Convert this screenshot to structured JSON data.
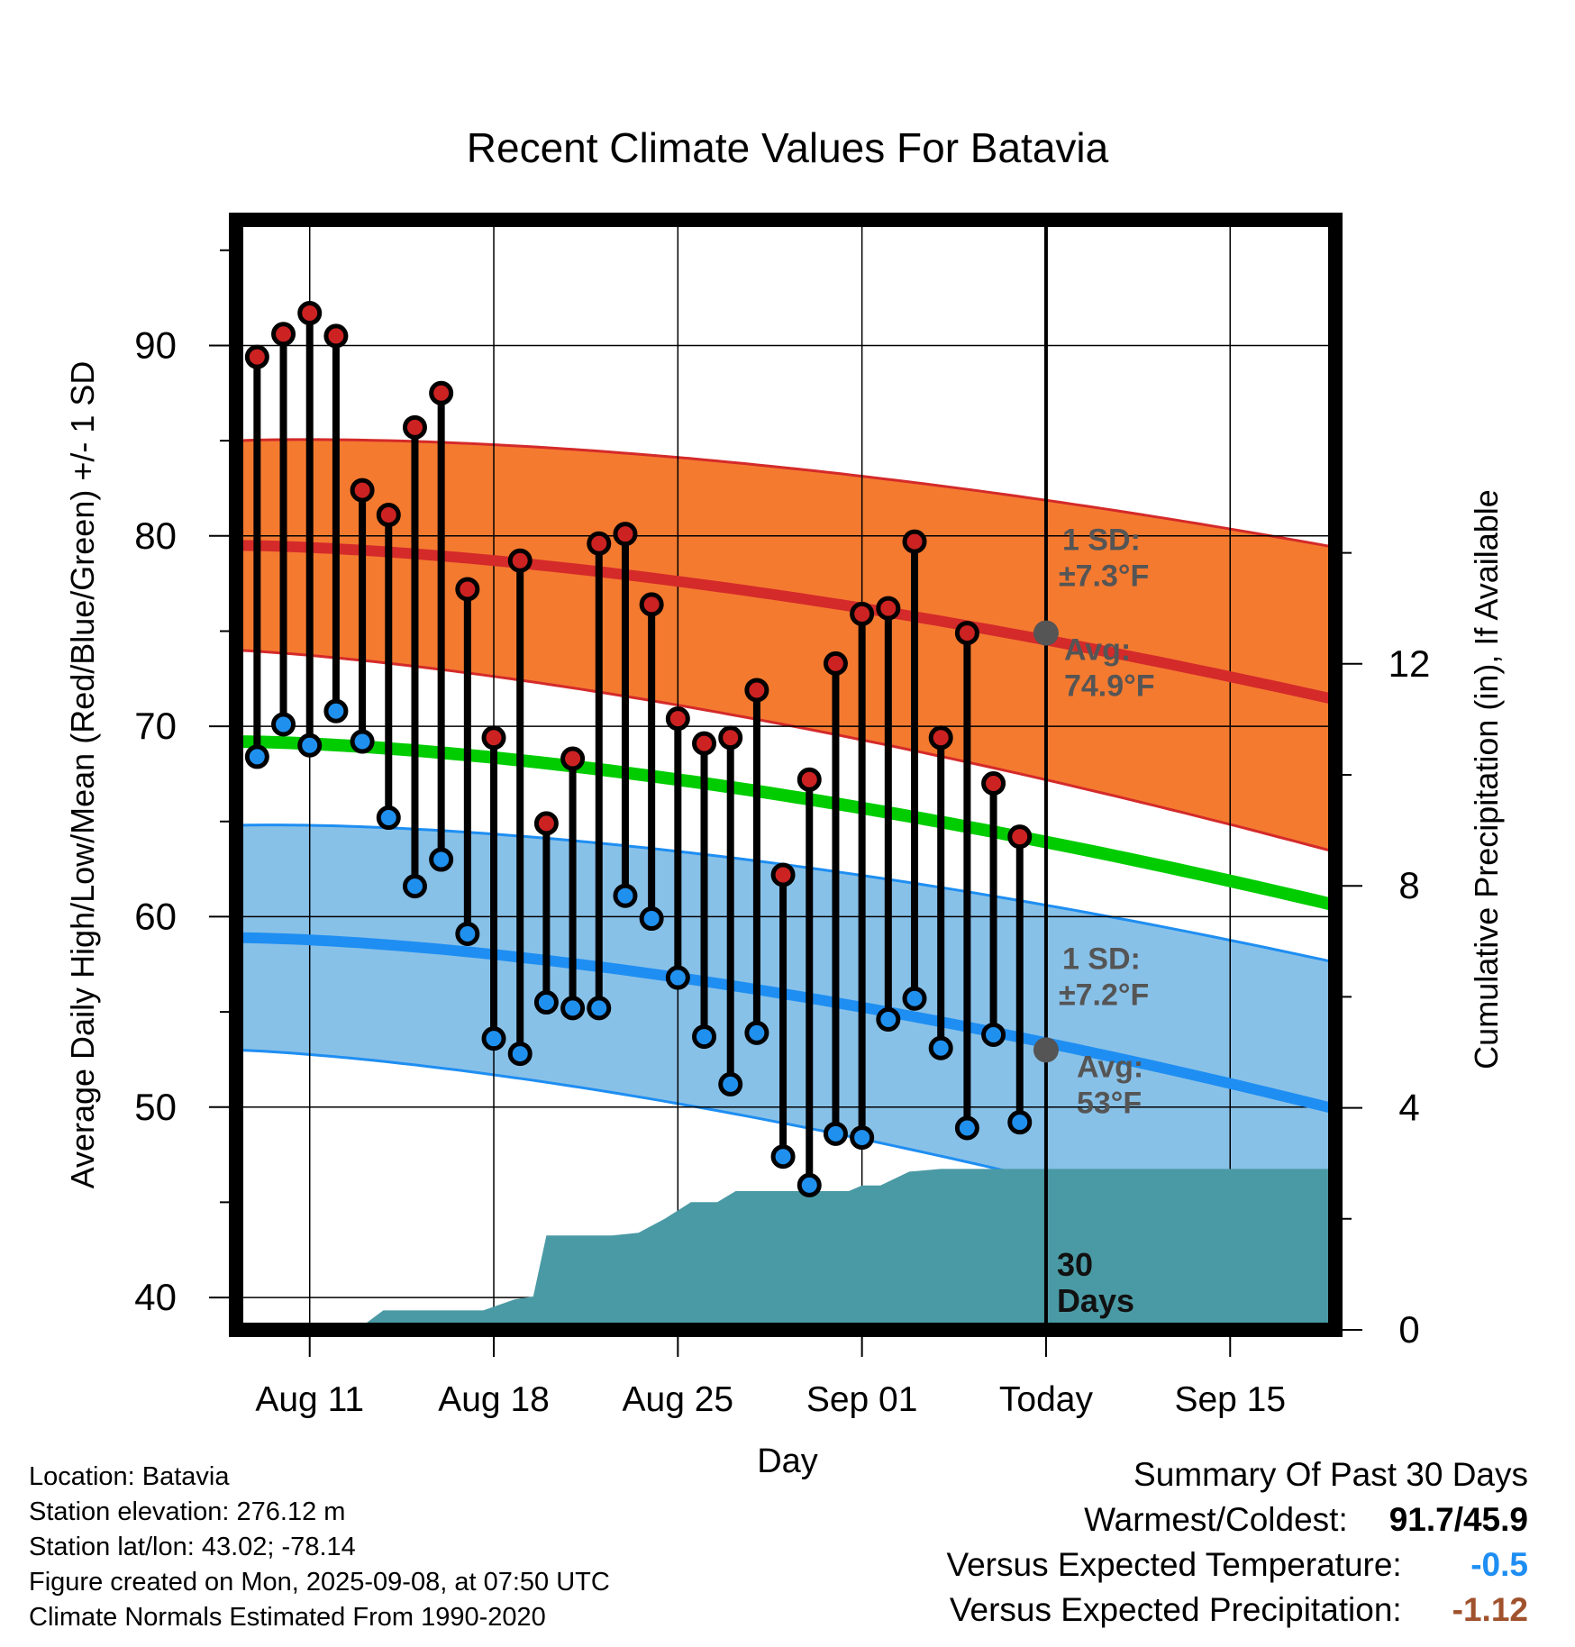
{
  "chart_data": {
    "type": "line",
    "title": "Recent Climate Values For Batavia",
    "xlabel": "Day",
    "ylabel": "Average Daily High/Low/Mean (Red/Blue/Green) +/- 1 SD",
    "y2label": "Cumulative Precipitation (in), If Available",
    "ylim": [
      38.3,
      96.6
    ],
    "y2lim": [
      0,
      20
    ],
    "xlim": [
      -0.8,
      41.0
    ],
    "yticks": [
      40,
      50,
      60,
      70,
      80,
      90
    ],
    "y2ticks": [
      0,
      4,
      8,
      12
    ],
    "xticks": [
      {
        "day": 2,
        "label": "Aug 11"
      },
      {
        "day": 9,
        "label": "Aug 18"
      },
      {
        "day": 16,
        "label": "Aug 25"
      },
      {
        "day": 23,
        "label": "Sep 01"
      },
      {
        "day": 30,
        "label": "Today"
      },
      {
        "day": 37,
        "label": "Sep 15"
      }
    ],
    "today_day": 30,
    "observed_days": [
      0,
      1,
      2,
      3,
      4,
      5,
      6,
      7,
      8,
      9,
      10,
      11,
      12,
      13,
      14,
      15,
      16,
      17,
      18,
      19,
      20,
      21,
      22,
      23,
      24,
      25,
      26,
      27,
      28,
      29
    ],
    "observed_highs": [
      89.4,
      90.6,
      91.7,
      90.5,
      82.4,
      81.1,
      85.7,
      87.5,
      77.2,
      69.4,
      78.7,
      64.9,
      68.3,
      79.6,
      80.1,
      76.4,
      70.4,
      69.1,
      69.4,
      71.9,
      62.2,
      67.2,
      73.3,
      75.9,
      76.2,
      79.7,
      69.4,
      74.9,
      67.0,
      64.2
    ],
    "observed_lows": [
      68.4,
      70.1,
      69.0,
      70.8,
      69.2,
      65.2,
      61.6,
      63.0,
      59.1,
      53.6,
      52.8,
      55.5,
      55.2,
      55.2,
      61.1,
      59.9,
      56.8,
      53.7,
      51.2,
      53.9,
      47.4,
      45.9,
      48.6,
      48.4,
      54.6,
      55.7,
      53.1,
      48.9,
      53.8,
      49.2
    ],
    "normal_high": {
      "start": 79.5,
      "end": 71.4,
      "sd_text": "1 SD:",
      "sd_value": "±7.3°F",
      "avg_text": "Avg:",
      "avg_value": "74.9°F",
      "today_value": 74.9,
      "sd": 7.3
    },
    "normal_low": {
      "start": 58.9,
      "end": 49.9,
      "sd_text": "1 SD:",
      "sd_value": "±7.2°F",
      "avg_text": "Avg:",
      "avg_value": "53°F",
      "today_value": 53.0,
      "sd": 7.2
    },
    "normal_mean": {
      "start": 69.2,
      "end": 60.6
    },
    "precip_cumulative": {
      "days": [
        -0.8,
        3.8,
        4.8,
        8.6,
        9.8,
        10.5,
        11.0,
        13.5,
        14.5,
        15.5,
        16.5,
        17.5,
        18.2,
        19.0,
        20.0,
        21.5,
        22.5,
        23.0,
        23.7,
        24.8,
        26.0,
        27.5,
        30.0,
        41.0
      ],
      "values": [
        0,
        0,
        0.35,
        0.35,
        0.55,
        0.6,
        1.7,
        1.7,
        1.75,
        2.0,
        2.3,
        2.3,
        2.5,
        2.5,
        2.5,
        2.5,
        2.5,
        2.6,
        2.6,
        2.85,
        2.9,
        2.9,
        2.9,
        2.9
      ],
      "label": "30 Days"
    },
    "colors": {
      "high_band": "#f47a30",
      "high_line": "#d42a2a",
      "low_band": "#88c1e8",
      "low_line": "#1e8ef2",
      "mean_line": "#00cc00",
      "precip": "#4a9aa5",
      "high_dot": "#cc2222",
      "low_dot": "#2090ee",
      "summary_temp": "#1e8ef2",
      "summary_precip": "#a0522d"
    }
  },
  "footer": {
    "location": "Location: Batavia",
    "elevation": "Station elevation: 276.12 m",
    "latlon": "Station lat/lon: 43.02; -78.14",
    "created": "Figure created on Mon, 2025-09-08, at 07:50 UTC",
    "normals": "Climate Normals Estimated From 1990-2020"
  },
  "summary": {
    "title": "Summary Of Past 30 Days",
    "warmest_label": "Warmest/Coldest:",
    "warmest_value": "91.7/45.9",
    "temp_label": "Versus Expected Temperature:",
    "temp_value": "-0.5",
    "precip_label": "Versus Expected Precipitation:",
    "precip_value": "-1.12"
  }
}
